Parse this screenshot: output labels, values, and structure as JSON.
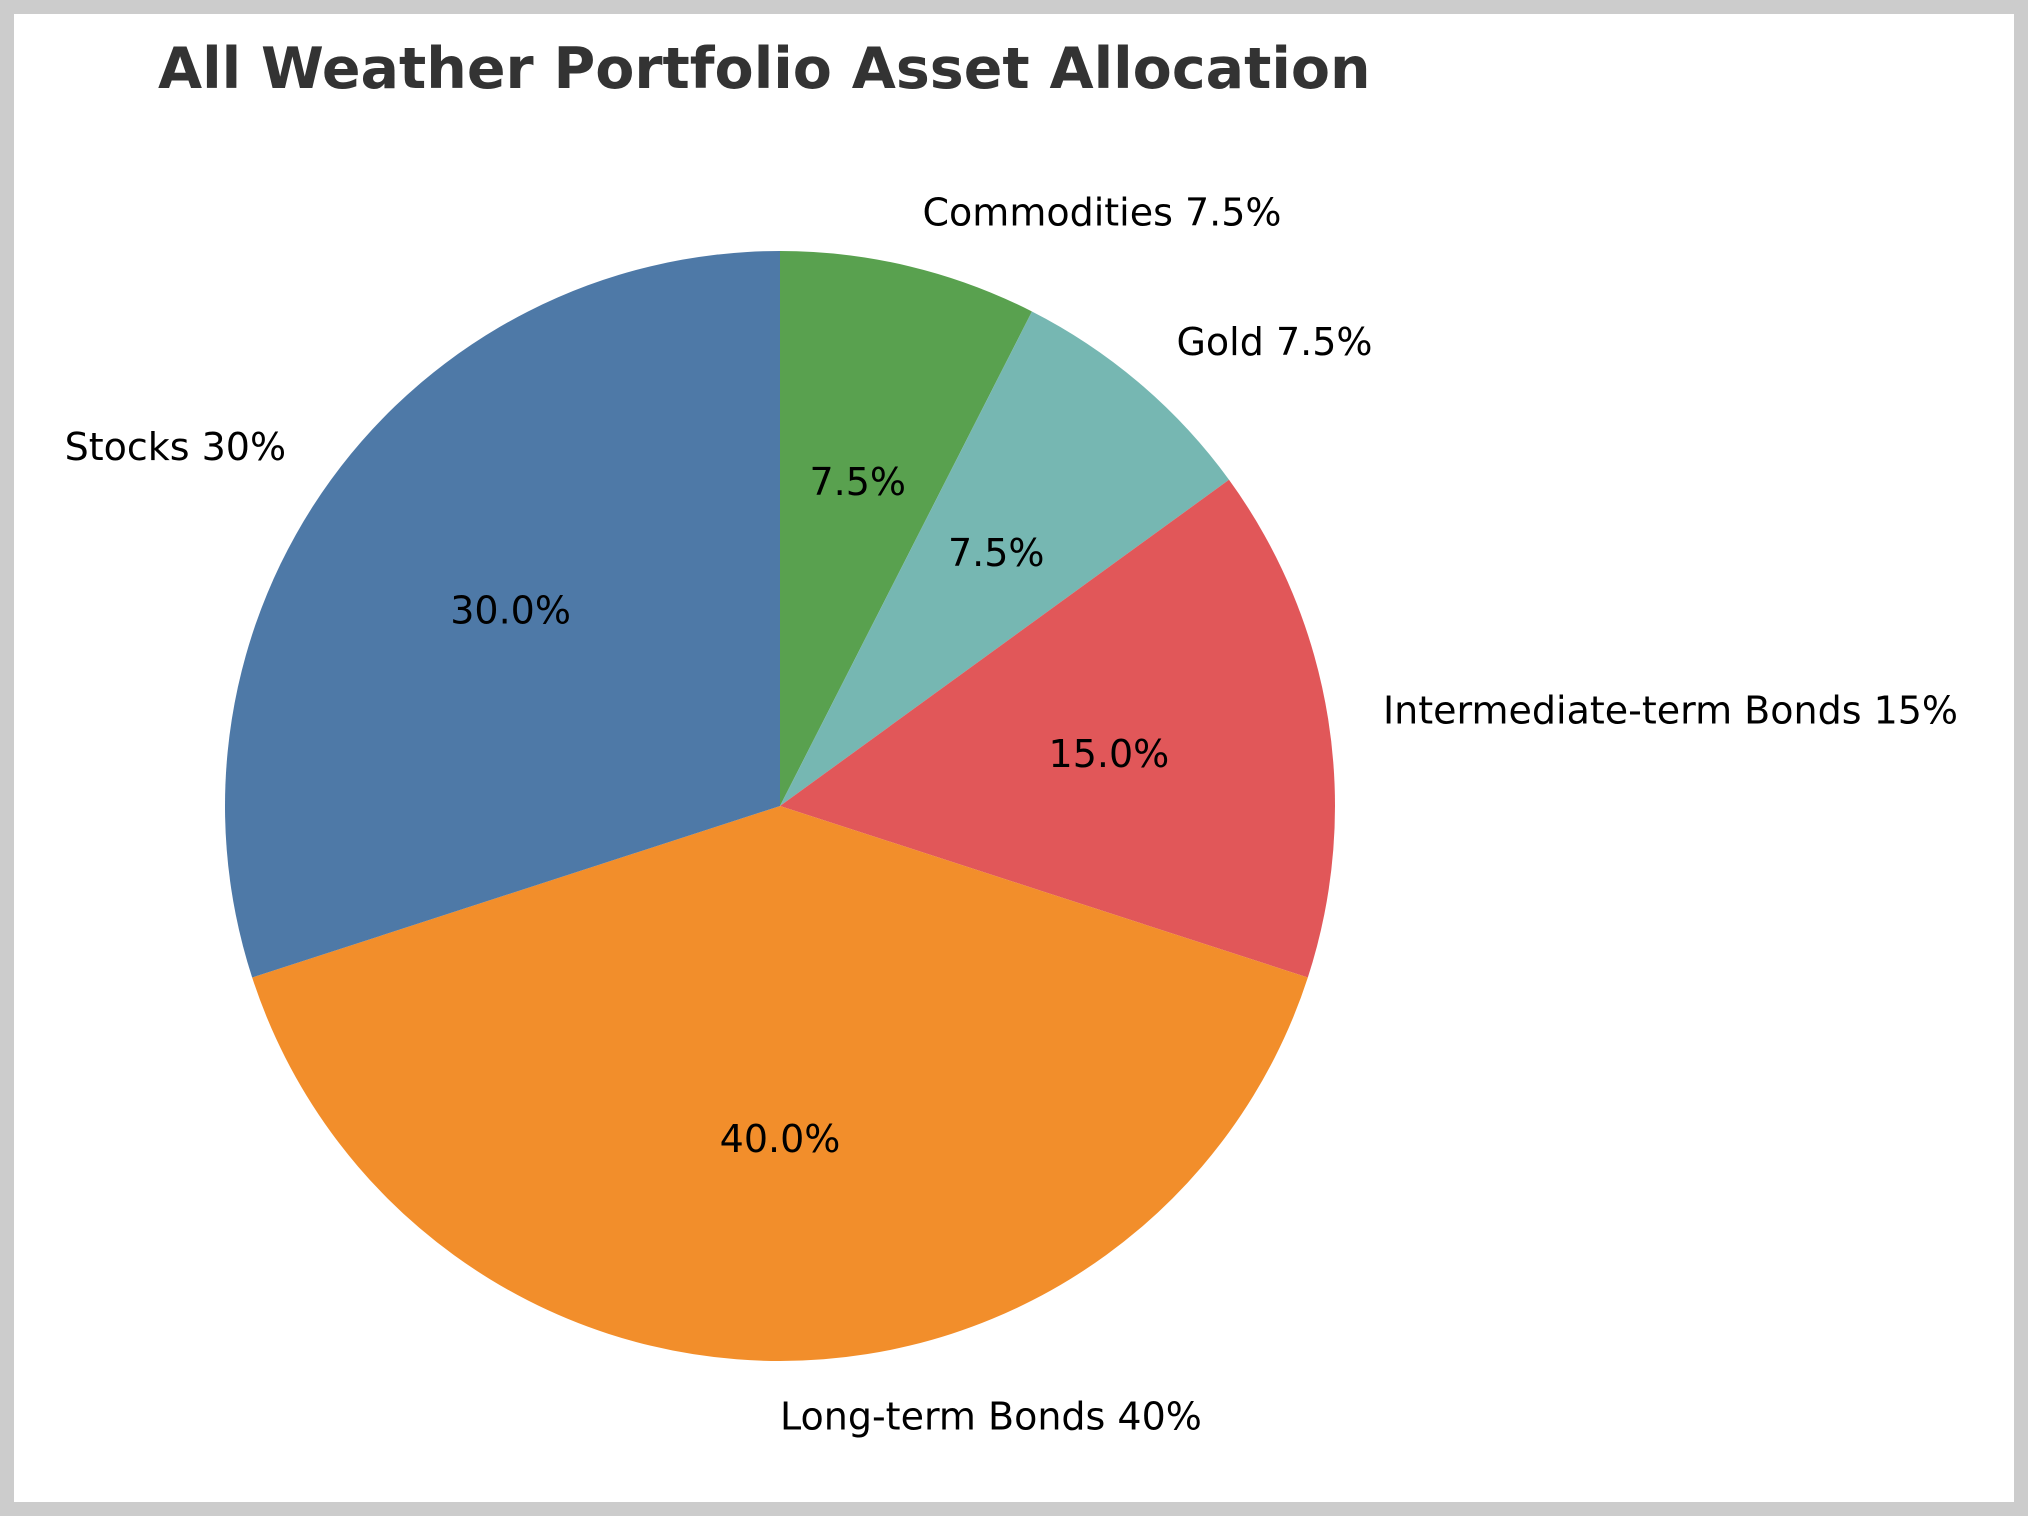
{
  "chart_data": {
    "type": "pie",
    "title": "All Weather Portfolio Asset Allocation",
    "start_angle_deg": 90,
    "direction": "clockwise",
    "slices": [
      {
        "label": "Commodities 7.5%",
        "value": 7.5,
        "pct_text": "7.5%",
        "color": "#59a14f"
      },
      {
        "label": "Gold 7.5%",
        "value": 7.5,
        "pct_text": "7.5%",
        "color": "#76b7b2"
      },
      {
        "label": "Intermediate-term Bonds 15%",
        "value": 15,
        "pct_text": "15.0%",
        "color": "#e15759"
      },
      {
        "label": "Long-term Bonds 40%",
        "value": 40,
        "pct_text": "40.0%",
        "color": "#f28e2b"
      },
      {
        "label": "Stocks 30%",
        "value": 30,
        "pct_text": "30.0%",
        "color": "#4e79a7"
      }
    ]
  }
}
